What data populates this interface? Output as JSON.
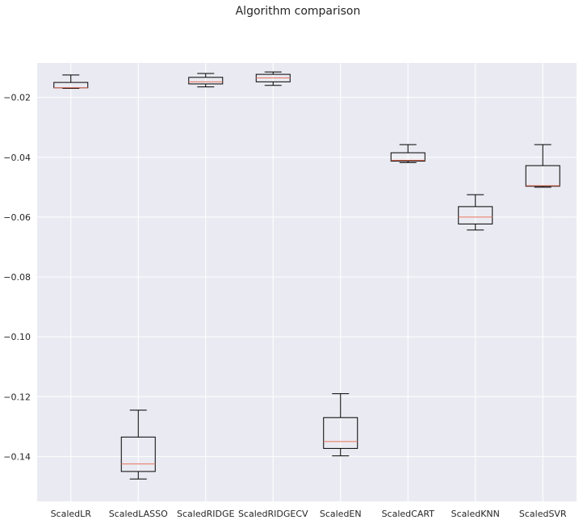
{
  "chart_data": {
    "type": "box",
    "title": "Algorithm comparison",
    "xlabel": "",
    "ylabel": "",
    "ylim": [
      -0.155,
      -0.0085
    ],
    "yticks": [
      -0.14,
      -0.12,
      -0.1,
      -0.08,
      -0.06,
      -0.04,
      -0.02
    ],
    "ytick_labels": [
      "−0.14",
      "−0.12",
      "−0.10",
      "−0.08",
      "−0.06",
      "−0.04",
      "−0.02"
    ],
    "grid": true,
    "categories": [
      "ScaledLR",
      "ScaledLASSO",
      "ScaledRIDGE",
      "ScaledRIDGECV",
      "ScaledEN",
      "ScaledCART",
      "ScaledKNN",
      "ScaledSVR"
    ],
    "boxes": [
      {
        "whisker_low": -0.017,
        "q1": -0.0168,
        "median": -0.0168,
        "q3": -0.015,
        "whisker_high": -0.0125
      },
      {
        "whisker_low": -0.1475,
        "q1": -0.145,
        "median": -0.1425,
        "q3": -0.1335,
        "whisker_high": -0.1245
      },
      {
        "whisker_low": -0.0165,
        "q1": -0.0155,
        "median": -0.0148,
        "q3": -0.0133,
        "whisker_high": -0.012
      },
      {
        "whisker_low": -0.016,
        "q1": -0.0148,
        "median": -0.0135,
        "q3": -0.0123,
        "whisker_high": -0.0115
      },
      {
        "whisker_low": -0.1398,
        "q1": -0.1373,
        "median": -0.135,
        "q3": -0.127,
        "whisker_high": -0.119
      },
      {
        "whisker_low": -0.0418,
        "q1": -0.0413,
        "median": -0.041,
        "q3": -0.0385,
        "whisker_high": -0.0358
      },
      {
        "whisker_low": -0.0643,
        "q1": -0.0623,
        "median": -0.06,
        "q3": -0.0565,
        "whisker_high": -0.0525
      },
      {
        "whisker_low": -0.05,
        "q1": -0.0497,
        "median": -0.0495,
        "q3": -0.0428,
        "whisker_high": -0.0358
      }
    ],
    "colors": {
      "background": "#eaeaf2",
      "box": "#000000",
      "median": "#e8735a",
      "grid": "#ffffff"
    }
  }
}
